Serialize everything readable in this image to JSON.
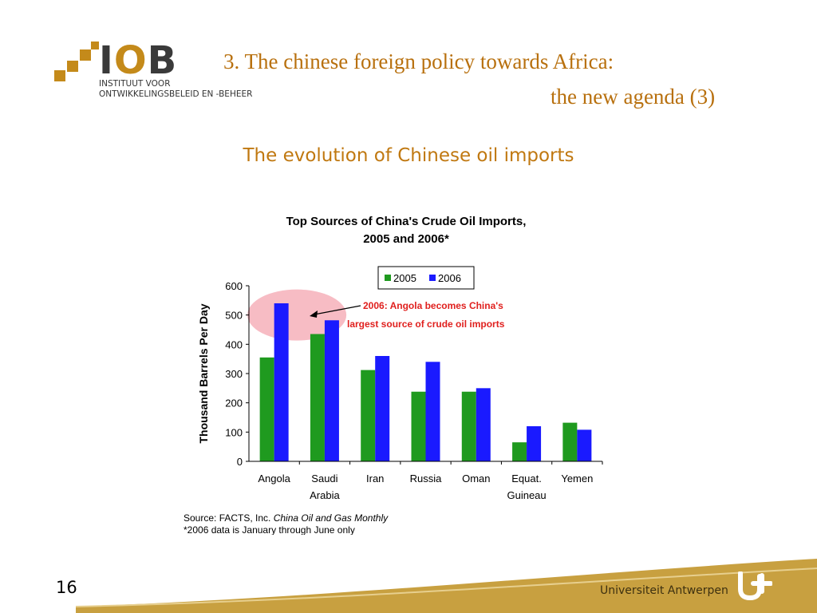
{
  "header": {
    "logo_letters_pre": "I",
    "logo_letters_o": "O",
    "logo_letters_post": "B",
    "logo_line1": "INSTITUUT VOOR",
    "logo_line2": "ONTWIKKELINGSBELEID EN -BEHEER",
    "title_line1": "3. The chinese foreign policy towards Africa:",
    "title_line2": "the new agenda (3)"
  },
  "subtitle": "The evolution of Chinese oil imports",
  "footer": {
    "page_number": "16",
    "university": "Universiteit Antwerpen"
  },
  "colors": {
    "accent": "#c07810",
    "series_2005": "#1f9a1f",
    "series_2006": "#1a1aff",
    "annotation": "#e0201e",
    "highlight": "#f4a5b0",
    "footer_band": "#c8a040"
  },
  "chart_data": {
    "type": "bar",
    "title_line1": "Top Sources of China's Crude Oil Imports,",
    "title_line2": "2005 and 2006*",
    "ylabel": "Thousand Barrels Per Day",
    "xlabel": "",
    "ylim": [
      0,
      600
    ],
    "yticks": [
      "0",
      "100",
      "200",
      "300",
      "400",
      "500",
      "600"
    ],
    "categories": [
      [
        "Angola"
      ],
      [
        "Saudi",
        "Arabia"
      ],
      [
        "Iran"
      ],
      [
        "Russia"
      ],
      [
        "Oman"
      ],
      [
        "Equat.",
        "Guineau"
      ],
      [
        "Yemen"
      ]
    ],
    "series": [
      {
        "name": "2005",
        "values": [
          355,
          435,
          312,
          238,
          238,
          65,
          132
        ]
      },
      {
        "name": "2006",
        "values": [
          540,
          482,
          360,
          340,
          250,
          120,
          108
        ]
      }
    ],
    "legend_position": "top-center",
    "annotation_line1": "2006: Angola becomes China's",
    "annotation_line2": "largest source of crude oil imports",
    "source_prefix": "Source: FACTS, Inc. ",
    "source_italic": "China Oil and Gas Monthly",
    "footnote": "*2006 data is January through June only"
  }
}
